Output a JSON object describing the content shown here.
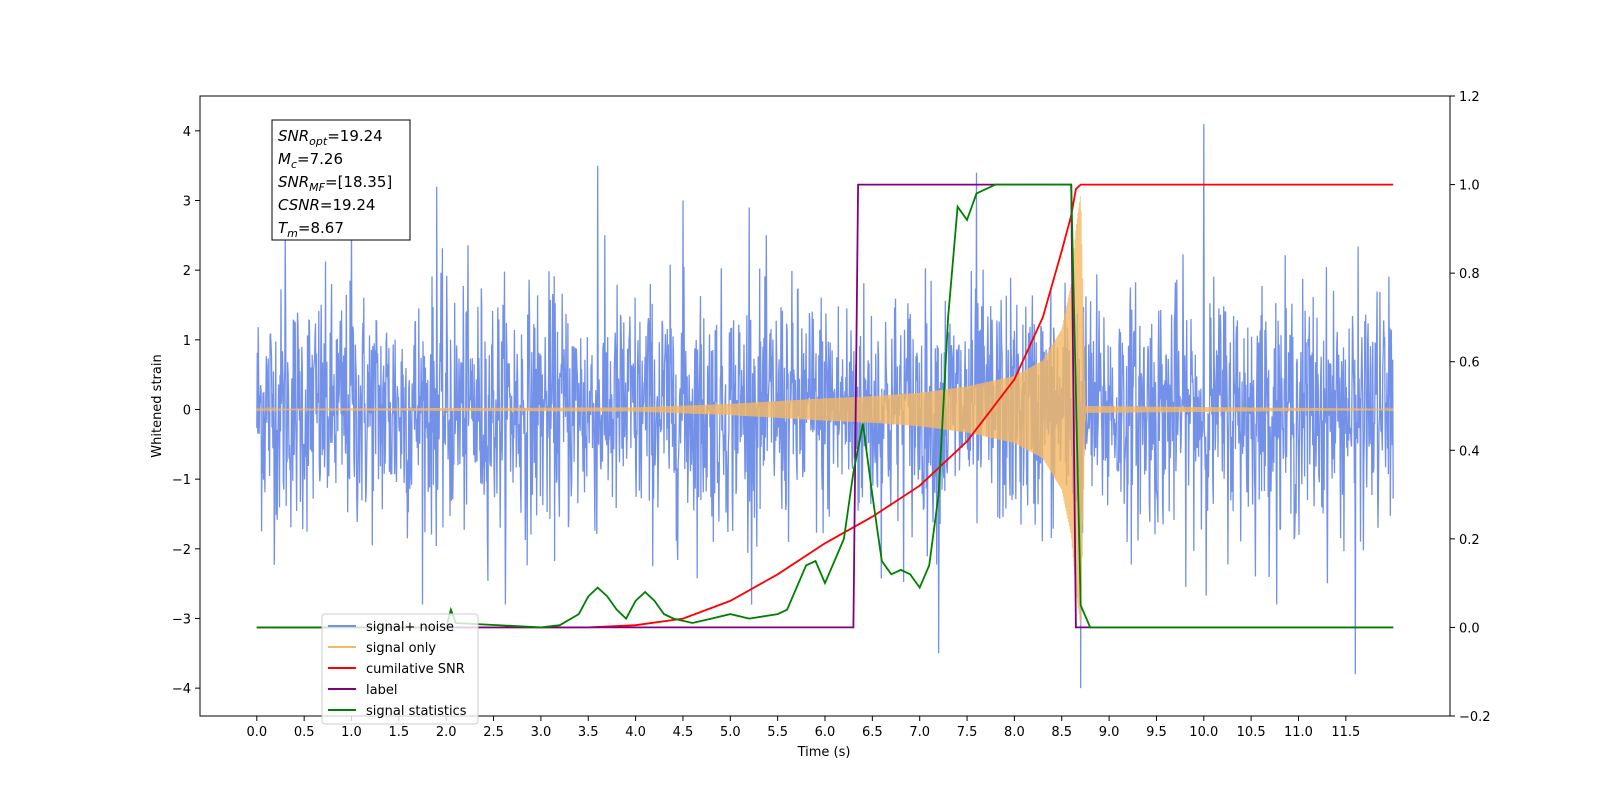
{
  "chart_data": {
    "type": "line",
    "xlabel": "Time (s)",
    "ylabel": "Whitened strain",
    "xlim": [
      -0.6,
      12.6
    ],
    "ylim": [
      -4.4,
      4.5
    ],
    "y2lim": [
      -0.2,
      1.2
    ],
    "xticks": [
      0.0,
      0.5,
      1.0,
      1.5,
      2.0,
      2.5,
      3.0,
      3.5,
      4.0,
      4.5,
      5.0,
      5.5,
      6.0,
      6.5,
      7.0,
      7.5,
      8.0,
      8.5,
      9.0,
      9.5,
      10.0,
      10.5,
      11.0,
      11.5
    ],
    "xtick_labels": [
      "0.0",
      "0.5",
      "1.0",
      "1.5",
      "2.0",
      "2.5",
      "3.0",
      "3.5",
      "4.0",
      "4.5",
      "5.0",
      "5.5",
      "6.0",
      "6.5",
      "7.0",
      "7.5",
      "8.0",
      "8.5",
      "9.0",
      "9.5",
      "10.0",
      "10.5",
      "11.0",
      "11.5"
    ],
    "yticks": [
      -4,
      -3,
      -2,
      -1,
      0,
      1,
      2,
      3,
      4
    ],
    "ytick_labels": [
      "−4",
      "−3",
      "−2",
      "−1",
      "0",
      "1",
      "2",
      "3",
      "4"
    ],
    "y2ticks": [
      -0.2,
      0.0,
      0.2,
      0.4,
      0.6,
      0.8,
      1.0,
      1.2
    ],
    "y2tick_labels": [
      "−0.2",
      "0.0",
      "0.2",
      "0.4",
      "0.6",
      "0.8",
      "1.0",
      "1.2"
    ],
    "grid": false,
    "legend_placement": "lower-left",
    "annotation": [
      {
        "base": "SNR",
        "sub": "opt",
        "text": "=19.24"
      },
      {
        "base": "M",
        "sub": "c",
        "text": "=7.26"
      },
      {
        "base": "SNR",
        "sub": "MF",
        "text": "=[18.35]"
      },
      {
        "base": "CSNR",
        "sub": "",
        "text": "=19.24"
      },
      {
        "base": "T",
        "sub": "m",
        "text": "=8.67"
      }
    ],
    "series": [
      {
        "name": "signal+ noise",
        "axis": "left",
        "color": "#7391e8",
        "kind": "noise",
        "spikes": [
          [
            0.3,
            2.5
          ],
          [
            1.0,
            2.6
          ],
          [
            1.9,
            3.2
          ],
          [
            3.6,
            3.5
          ],
          [
            4.5,
            3.0
          ],
          [
            5.2,
            2.9
          ],
          [
            7.2,
            -3.5
          ],
          [
            7.6,
            3.4
          ],
          [
            8.7,
            -4.0
          ],
          [
            10.0,
            4.1
          ],
          [
            11.6,
            -3.8
          ]
        ]
      },
      {
        "name": "signal only",
        "axis": "left",
        "color": "#f5b860",
        "kind": "chirp",
        "envelope": [
          [
            0,
            0.01
          ],
          [
            4.0,
            0.03
          ],
          [
            5.0,
            0.08
          ],
          [
            6.0,
            0.16
          ],
          [
            6.5,
            0.19
          ],
          [
            7.0,
            0.24
          ],
          [
            7.5,
            0.33
          ],
          [
            8.0,
            0.48
          ],
          [
            8.3,
            0.7
          ],
          [
            8.5,
            1.15
          ],
          [
            8.6,
            1.8
          ],
          [
            8.65,
            2.6
          ],
          [
            8.7,
            3.1
          ],
          [
            8.75,
            0.05
          ],
          [
            12.0,
            0.01
          ]
        ]
      },
      {
        "name": "cumilative SNR",
        "axis": "right",
        "color": "#ff0000",
        "kind": "line",
        "x": [
          0,
          3.5,
          4.0,
          4.5,
          5.0,
          5.5,
          6.0,
          6.5,
          7.0,
          7.5,
          8.0,
          8.3,
          8.5,
          8.6,
          8.65,
          8.7,
          12.0
        ],
        "y": [
          0,
          0,
          0.005,
          0.02,
          0.06,
          0.12,
          0.19,
          0.25,
          0.32,
          0.42,
          0.56,
          0.7,
          0.85,
          0.93,
          0.99,
          1.0,
          1.0
        ]
      },
      {
        "name": "label",
        "axis": "right",
        "color": "#800080",
        "kind": "line",
        "x": [
          0,
          6.3,
          6.35,
          8.6,
          8.65,
          12.0
        ],
        "y": [
          0,
          0,
          1.0,
          1.0,
          0,
          0
        ]
      },
      {
        "name": "signal statistics",
        "axis": "right",
        "color": "#008000",
        "kind": "line",
        "x": [
          0,
          2.0,
          2.05,
          2.1,
          3.0,
          3.2,
          3.4,
          3.5,
          3.6,
          3.7,
          3.8,
          3.9,
          4.0,
          4.1,
          4.2,
          4.3,
          4.4,
          4.6,
          4.8,
          5.0,
          5.2,
          5.5,
          5.6,
          5.8,
          5.9,
          6.0,
          6.1,
          6.2,
          6.3,
          6.4,
          6.5,
          6.6,
          6.7,
          6.8,
          6.9,
          7.0,
          7.1,
          7.2,
          7.3,
          7.4,
          7.5,
          7.6,
          7.8,
          8.0,
          8.2,
          8.4,
          8.6,
          8.7,
          8.8,
          12.0
        ],
        "y": [
          0,
          0,
          0.04,
          0.01,
          0,
          0.005,
          0.03,
          0.07,
          0.09,
          0.07,
          0.04,
          0.02,
          0.06,
          0.08,
          0.06,
          0.03,
          0.02,
          0.01,
          0.02,
          0.03,
          0.02,
          0.03,
          0.04,
          0.14,
          0.15,
          0.1,
          0.15,
          0.2,
          0.35,
          0.46,
          0.3,
          0.15,
          0.12,
          0.13,
          0.12,
          0.09,
          0.14,
          0.3,
          0.7,
          0.95,
          0.92,
          0.98,
          1.0,
          1.0,
          1.0,
          1.0,
          1.0,
          0.05,
          0,
          0
        ]
      }
    ]
  }
}
